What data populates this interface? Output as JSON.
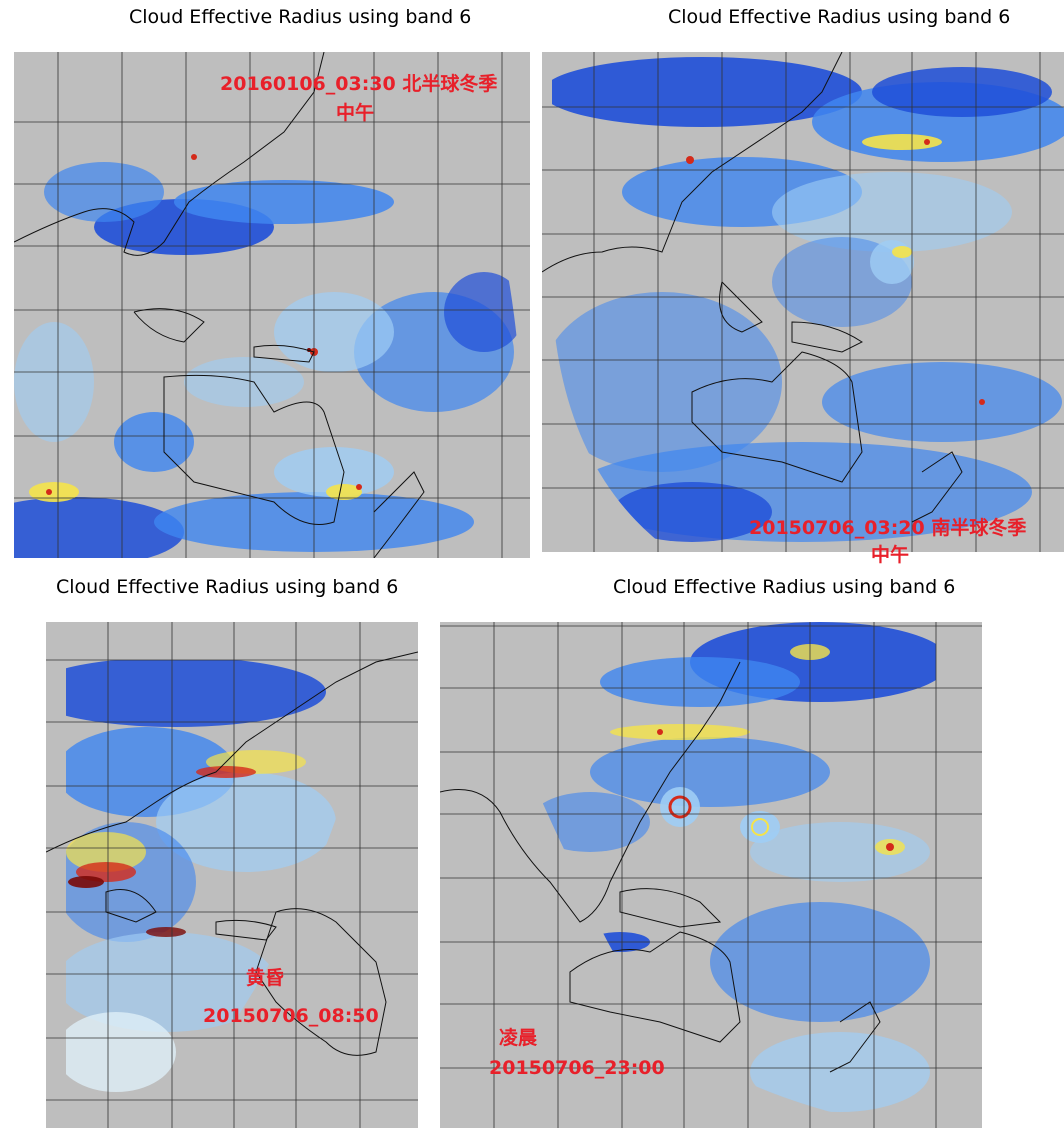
{
  "panels": [
    {
      "title": "Cloud Effective Radius using band 6",
      "annotation_line1": "20160106_03:30  北半球冬季",
      "annotation_line2": "中午"
    },
    {
      "title": "Cloud Effective Radius using band 6",
      "annotation_line1": "20150706_03:20 南半球冬季",
      "annotation_line2": "中午"
    },
    {
      "title": "Cloud Effective Radius using band 6",
      "annotation_line1": "黄昏",
      "annotation_line2": "20150706_08:50"
    },
    {
      "title": "Cloud Effective Radius using band 6",
      "annotation_line1": "凌晨",
      "annotation_line2": "20150706_23:00"
    }
  ],
  "colors": {
    "background": "#bebebe",
    "cloud_deep_blue": "#1f4fd8",
    "cloud_mid_blue": "#3f86f0",
    "cloud_light_blue": "#9fcdf5",
    "cloud_pale": "#dfeff8",
    "cloud_yellow": "#f5e34a",
    "cloud_red": "#d42a1a",
    "cloud_dark_red": "#7a0a08",
    "annotation": "#e8202a"
  }
}
